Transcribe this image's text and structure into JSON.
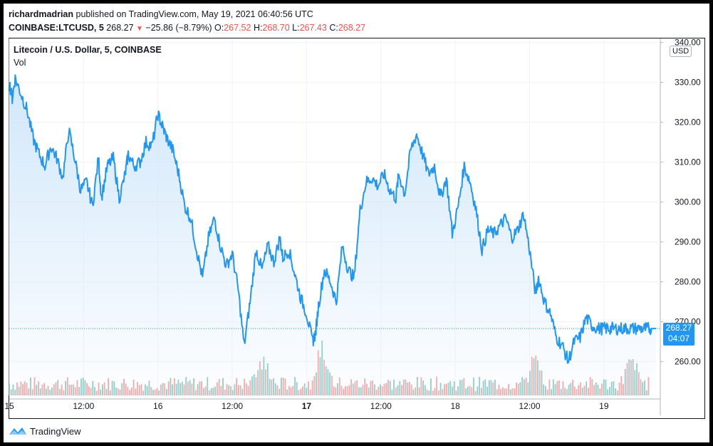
{
  "header": {
    "author": "richardmadrian",
    "published_text": "published on TradingView.com, May 19, 2021 06:40:56 UTC",
    "symbol": "COINBASE:LTCUSD, 5",
    "last": "268.27",
    "change": "−25.86 (−8.79%)",
    "o_label": "O:",
    "o_val": "267.52",
    "h_label": "H:",
    "h_val": "268.70",
    "l_label": "L:",
    "l_val": "267.43",
    "c_label": "C:",
    "c_val": "268.27"
  },
  "legend": {
    "title": "Litecoin / U.S. Dollar, 5, COINBASE",
    "volume": "Vol"
  },
  "axis": {
    "currency": "USD"
  },
  "price_tag": {
    "price": "268.27",
    "countdown": "04:07"
  },
  "brand": {
    "name": "TradingView",
    "icon": "tradingview-logo-icon"
  },
  "colors": {
    "line": "#2196f3",
    "area": "#cfe6fa",
    "vol_up": "#6bb8b0",
    "vol_down": "#ef8a8a",
    "tag": "#2196f3"
  },
  "chart_data": {
    "type": "area",
    "title": "Litecoin / U.S. Dollar, 5, COINBASE",
    "ylabel": "USD",
    "ylim": [
      251.5,
      341
    ],
    "grid": true,
    "y_ticks": [
      340,
      330,
      320,
      310,
      300,
      290,
      280,
      270,
      260
    ],
    "y_tick_labels": [
      "340.00",
      "330.00",
      "320.00",
      "310.00",
      "300.00",
      "290.00",
      "280.00",
      "270.00",
      "260.00"
    ],
    "x_range": [
      0,
      4.36
    ],
    "x_ticks": [
      0,
      0.5,
      1,
      1.5,
      2,
      2.5,
      3,
      3.5,
      4
    ],
    "x_tick_labels": [
      "15",
      "12:00",
      "16",
      "12:00",
      "17",
      "12:00",
      "18",
      "12:00",
      "19"
    ],
    "x_tick_bold": [
      false,
      false,
      false,
      false,
      true,
      false,
      false,
      false,
      false
    ],
    "series": [
      {
        "name": "Litecoin / U.S. Dollar",
        "x": [
          0,
          0.02,
          0.04,
          0.08,
          0.12,
          0.16,
          0.2,
          0.24,
          0.28,
          0.32,
          0.36,
          0.4,
          0.44,
          0.48,
          0.52,
          0.56,
          0.6,
          0.62,
          0.66,
          0.7,
          0.74,
          0.78,
          0.8,
          0.84,
          0.88,
          0.92,
          0.96,
          1.0,
          1.03,
          1.06,
          1.1,
          1.14,
          1.18,
          1.22,
          1.26,
          1.3,
          1.34,
          1.38,
          1.42,
          1.46,
          1.5,
          1.54,
          1.58,
          1.62,
          1.66,
          1.7,
          1.74,
          1.78,
          1.82,
          1.84,
          1.88,
          1.92,
          1.96,
          2.0,
          2.04,
          2.06,
          2.08,
          2.12,
          2.16,
          2.2,
          2.24,
          2.28,
          2.32,
          2.36,
          2.4,
          2.44,
          2.48,
          2.52,
          2.56,
          2.6,
          2.62,
          2.66,
          2.7,
          2.74,
          2.78,
          2.82,
          2.86,
          2.9,
          2.94,
          2.98,
          3.02,
          3.06,
          3.1,
          3.14,
          3.18,
          3.22,
          3.26,
          3.3,
          3.34,
          3.38,
          3.42,
          3.46,
          3.5,
          3.54,
          3.56,
          3.6,
          3.64,
          3.68,
          3.72,
          3.76,
          3.8,
          3.84,
          3.88,
          3.92,
          3.96,
          4.0,
          4.03,
          4.06,
          4.1,
          4.14,
          4.18,
          4.22,
          4.26,
          4.29,
          4.32,
          4.35
        ],
        "values": [
          330,
          326,
          331,
          327,
          323,
          316,
          312,
          309,
          314,
          311,
          306,
          318,
          311,
          303,
          305,
          299,
          311,
          301,
          309,
          311,
          301,
          307,
          312,
          309,
          310,
          315,
          314,
          322,
          319,
          316,
          313,
          307,
          299,
          296,
          288,
          281,
          291,
          296,
          289,
          284,
          287,
          278,
          264,
          275,
          288,
          283,
          289,
          285,
          291,
          286,
          288,
          282,
          276,
          272,
          265,
          267,
          274,
          283,
          280,
          275,
          289,
          283,
          281,
          298,
          305,
          306,
          304,
          307,
          303,
          301,
          307,
          302,
          313,
          317,
          312,
          307,
          309,
          301,
          306,
          292,
          299,
          309,
          305,
          298,
          288,
          293,
          292,
          294,
          296,
          291,
          293,
          297,
          288,
          277,
          281,
          275,
          272,
          266,
          264,
          260,
          265,
          266,
          271,
          269,
          268.27,
          268.27,
          268.27,
          268.27,
          268.27,
          268.27,
          268.27,
          268.27,
          268.27,
          268.27,
          268.27,
          268.27
        ]
      }
    ],
    "volume_peaks": [
      {
        "x": 1.7,
        "rel": 0.6
      },
      {
        "x": 2.11,
        "rel": 0.85
      },
      {
        "x": 3.53,
        "rel": 0.55
      },
      {
        "x": 4.19,
        "rel": 0.65
      }
    ]
  }
}
